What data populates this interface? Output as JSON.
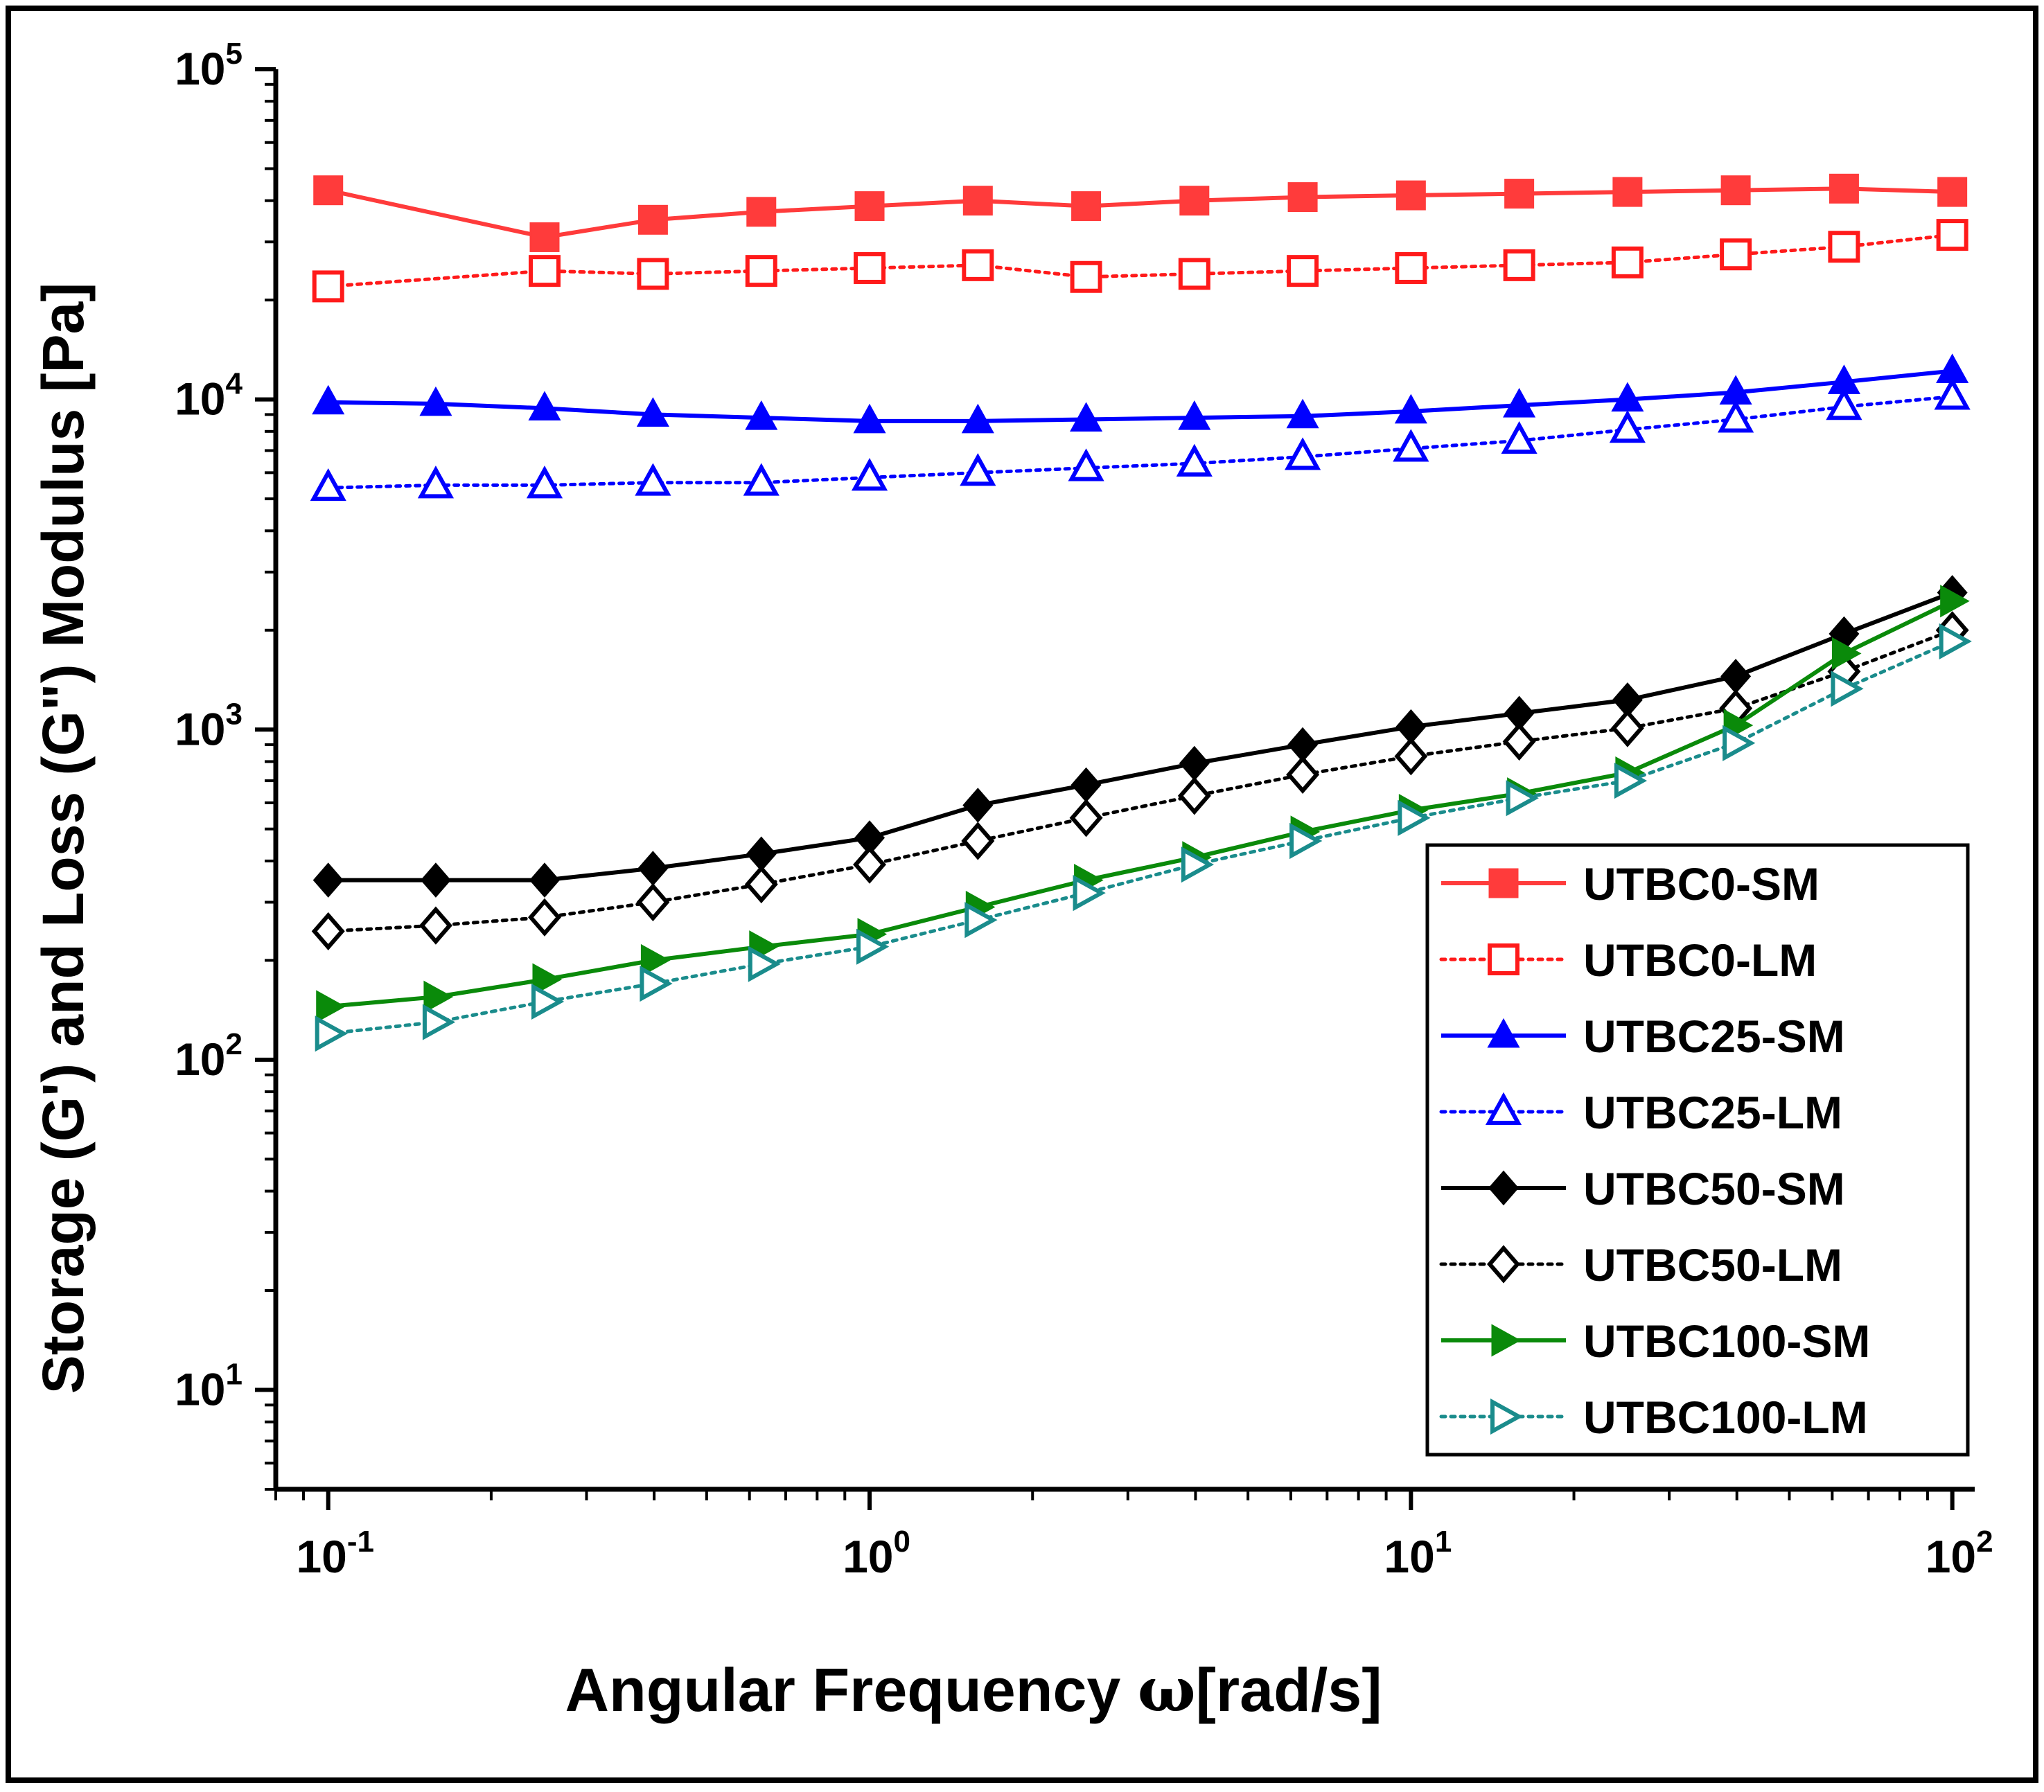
{
  "chart_data": {
    "type": "line",
    "xscale": "log",
    "yscale": "log",
    "xlim": [
      0.08,
      110
    ],
    "ylim": [
      5,
      100000
    ],
    "xlabel_prefix": "Angular Frequency ",
    "xlabel_symbol": "ω",
    "xlabel_suffix": "[rad/s]",
    "ylabel": "Storage (G') and Loss (G\") Modulus [Pa]",
    "x_ticks": [
      {
        "base": "10",
        "exp": "-1",
        "value": 0.1
      },
      {
        "base": "10",
        "exp": "0",
        "value": 1
      },
      {
        "base": "10",
        "exp": "1",
        "value": 10
      },
      {
        "base": "10",
        "exp": "2",
        "value": 100
      }
    ],
    "y_ticks": [
      {
        "base": "10",
        "exp": "1",
        "value": 10
      },
      {
        "base": "10",
        "exp": "2",
        "value": 100
      },
      {
        "base": "10",
        "exp": "3",
        "value": 1000
      },
      {
        "base": "10",
        "exp": "4",
        "value": 10000
      },
      {
        "base": "10",
        "exp": "5",
        "value": 100000
      }
    ],
    "x": [
      0.1,
      0.158,
      0.251,
      0.398,
      0.631,
      1.0,
      1.585,
      2.512,
      3.981,
      6.31,
      10.0,
      15.85,
      25.12,
      39.81,
      63.1,
      100.0
    ],
    "legend_position": "bottom-right",
    "series": [
      {
        "name": "UTBC0-SM",
        "color": "#ff3b3b",
        "marker": "square",
        "filled": true,
        "line": "solid",
        "values": [
          43000,
          null,
          31000,
          35000,
          37000,
          38500,
          40000,
          38500,
          40000,
          41000,
          41500,
          42000,
          42500,
          43000,
          43500,
          42500
        ]
      },
      {
        "name": "UTBC0-LM",
        "color": "#ff1a1a",
        "marker": "square",
        "filled": false,
        "line": "dotted",
        "values": [
          22000,
          null,
          24500,
          24000,
          24500,
          25000,
          25500,
          23500,
          24000,
          24500,
          25000,
          25500,
          26000,
          27500,
          29000,
          31500
        ]
      },
      {
        "name": "UTBC25-SM",
        "color": "#0000ff",
        "marker": "triangle-up",
        "filled": true,
        "line": "solid",
        "values": [
          9800,
          9700,
          9400,
          9000,
          8800,
          8600,
          8600,
          8700,
          8800,
          8900,
          9200,
          9600,
          10000,
          10500,
          11300,
          12200
        ]
      },
      {
        "name": "UTBC25-LM",
        "color": "#0000ff",
        "marker": "triangle-up",
        "filled": false,
        "line": "dotted",
        "values": [
          5400,
          5500,
          5500,
          5600,
          5600,
          5800,
          6000,
          6200,
          6400,
          6700,
          7100,
          7500,
          8100,
          8700,
          9500,
          10200
        ]
      },
      {
        "name": "UTBC50-SM",
        "color": "#000000",
        "marker": "diamond",
        "filled": true,
        "line": "solid",
        "values": [
          350,
          350,
          350,
          380,
          420,
          470,
          590,
          680,
          790,
          900,
          1020,
          1120,
          1230,
          1450,
          1950,
          2600
        ]
      },
      {
        "name": "UTBC50-LM",
        "color": "#000000",
        "marker": "diamond",
        "filled": false,
        "line": "dotted",
        "values": [
          245,
          255,
          270,
          300,
          340,
          390,
          460,
          540,
          630,
          730,
          830,
          920,
          1010,
          1160,
          1500,
          2000
        ]
      },
      {
        "name": "UTBC100-SM",
        "color": "#0a8a0a",
        "marker": "triangle-right",
        "filled": true,
        "line": "solid",
        "values": [
          145,
          155,
          175,
          200,
          220,
          240,
          290,
          350,
          410,
          490,
          570,
          640,
          740,
          1030,
          1700,
          2450
        ]
      },
      {
        "name": "UTBC100-LM",
        "color": "#1a8c8c",
        "marker": "triangle-right",
        "filled": false,
        "line": "dotted",
        "values": [
          120,
          130,
          150,
          170,
          195,
          220,
          265,
          320,
          390,
          460,
          540,
          620,
          700,
          910,
          1330,
          1850
        ]
      }
    ]
  }
}
